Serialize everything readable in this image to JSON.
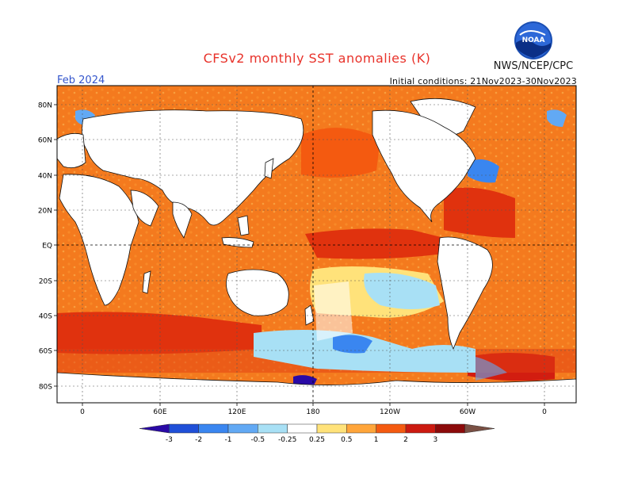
{
  "header": {
    "title": "CFSv2 monthly SST anomalies (K)",
    "agency": "NWS/NCEP/CPC",
    "logo_text": "NOAA",
    "month_label": "Feb 2024",
    "initial_conditions": "Initial conditions: 21Nov2023-30Nov2023"
  },
  "map": {
    "lat_labels": [
      "80N",
      "60N",
      "40N",
      "20N",
      "EQ",
      "20S",
      "40S",
      "60S",
      "80S"
    ],
    "lon_labels": [
      "0",
      "60E",
      "120E",
      "180",
      "120W",
      "60W",
      "0"
    ]
  },
  "colorbar": {
    "tick_labels": [
      "-3",
      "-2",
      "-1",
      "-0.5",
      "-0.25",
      "0.25",
      "0.5",
      "1",
      "2",
      "3"
    ],
    "colors": [
      "#2a0aa6",
      "#1f4fd8",
      "#3a86f0",
      "#62a9f4",
      "#a8e0f5",
      "#ffffff",
      "#ffe27a",
      "#ffa53a",
      "#f45a10",
      "#cc1a10",
      "#8c0a0a",
      "#7a5044"
    ]
  },
  "colors": {
    "title": "#e8322a",
    "month": "#3355cc",
    "land": "#ffffff",
    "grid": "#555555"
  }
}
